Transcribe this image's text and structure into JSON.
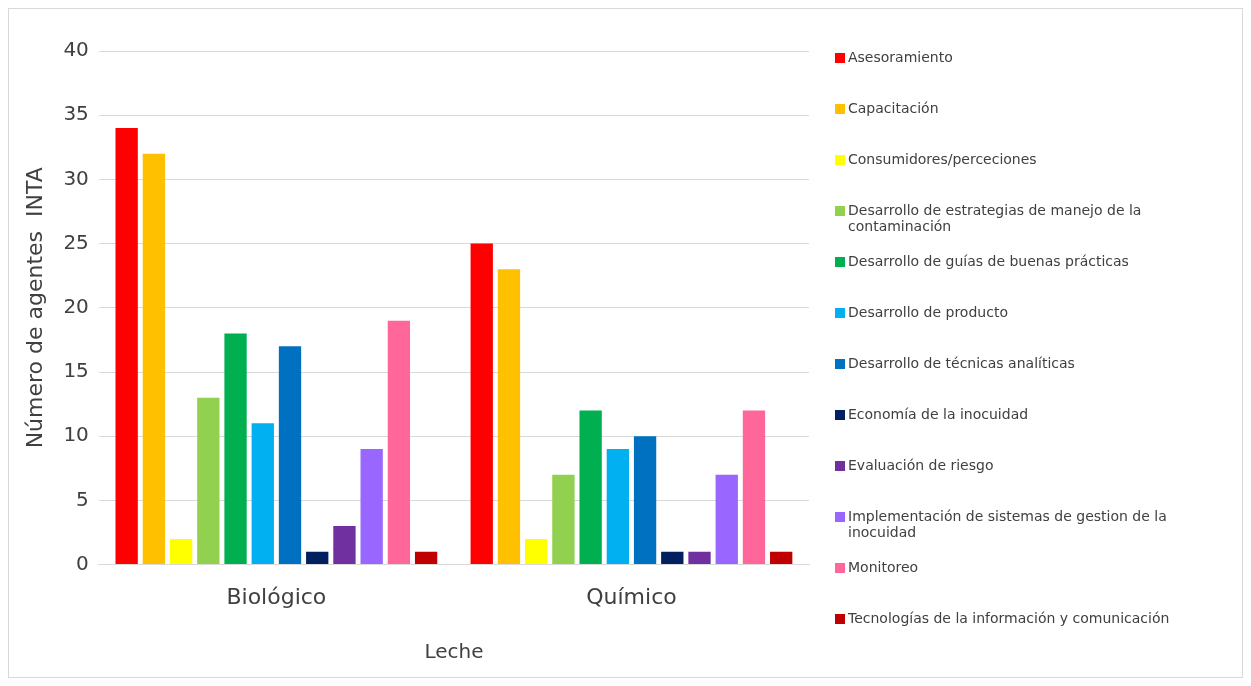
{
  "chart_data": {
    "type": "bar",
    "ylabel": "Número de agentes  INTA",
    "xlabel": "Leche",
    "categories": [
      "Biológico",
      "Químico"
    ],
    "ylim": [
      0,
      40
    ],
    "yticks": [
      0,
      5,
      10,
      15,
      20,
      25,
      30,
      35,
      40
    ],
    "grid": "y",
    "legend": "right",
    "series": [
      {
        "name": "Asesoramiento",
        "color": "#ff0000",
        "values": [
          34,
          25
        ]
      },
      {
        "name": "Capacitación",
        "color": "#ffc000",
        "values": [
          32,
          23
        ]
      },
      {
        "name": "Consumidores/perceciones",
        "color": "#ffff00",
        "values": [
          2,
          2
        ]
      },
      {
        "name": "Desarrollo de estrategias de manejo de la contaminación",
        "color": "#92d050",
        "values": [
          13,
          7
        ]
      },
      {
        "name": "Desarrollo de guías de buenas prácticas",
        "color": "#00b050",
        "values": [
          18,
          12
        ]
      },
      {
        "name": "Desarrollo de producto",
        "color": "#00b0f0",
        "values": [
          11,
          9
        ]
      },
      {
        "name": "Desarrollo de técnicas analíticas",
        "color": "#0070c0",
        "values": [
          17,
          10
        ]
      },
      {
        "name": "Economía de la inocuidad",
        "color": "#002060",
        "values": [
          1,
          1
        ]
      },
      {
        "name": "Evaluación de riesgo",
        "color": "#7030a0",
        "values": [
          3,
          1
        ]
      },
      {
        "name": "Implementación de sistemas de gestion de la inocuidad",
        "color": "#9966ff",
        "values": [
          9,
          7
        ]
      },
      {
        "name": "Monitoreo",
        "color": "#ff6699",
        "values": [
          19,
          12
        ]
      },
      {
        "name": "Tecnologías de la información y comunicación",
        "color": "#c00000",
        "values": [
          1,
          1
        ]
      }
    ]
  }
}
